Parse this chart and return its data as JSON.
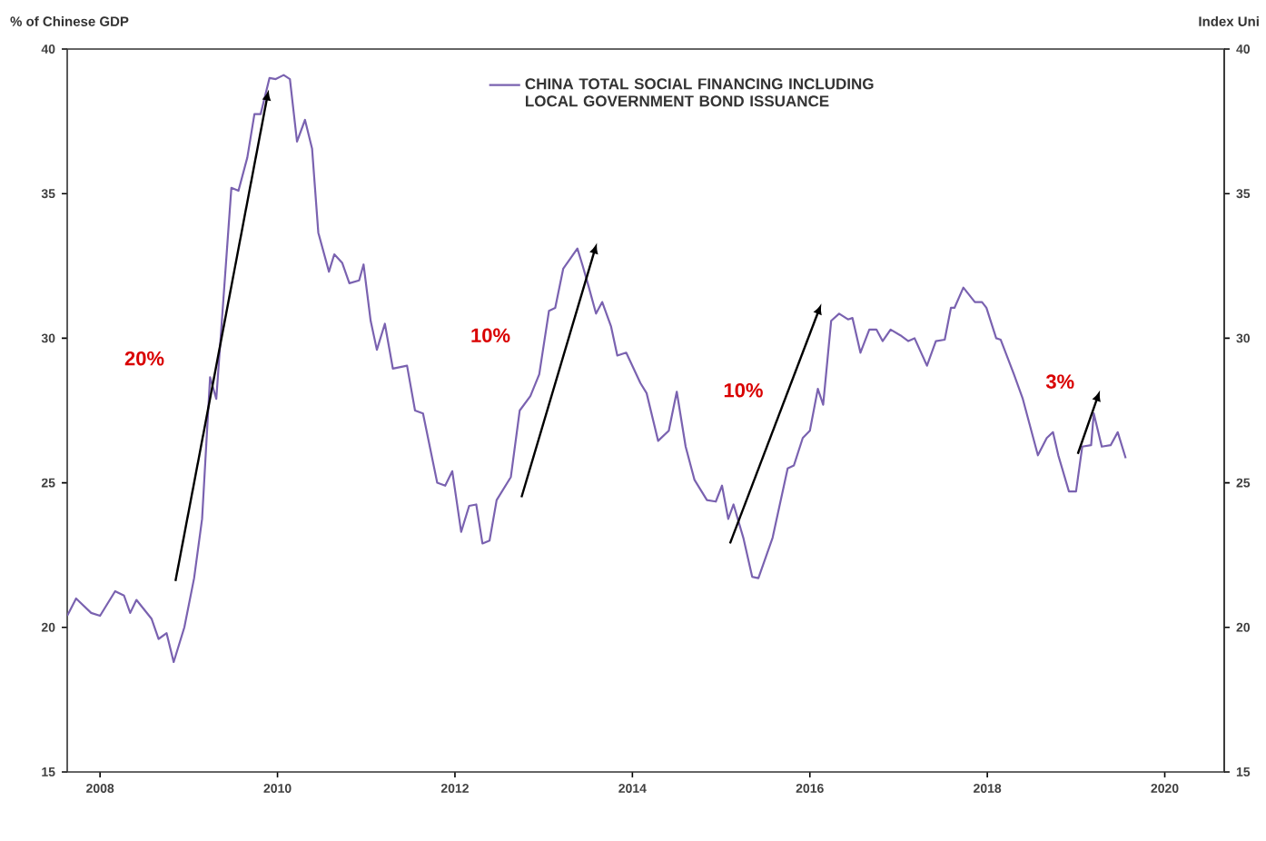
{
  "chart_data": {
    "type": "line",
    "ylabel": "% of Chinese GDP",
    "y2label": "Index Uni",
    "x": [
      2007.63,
      2007.73,
      2007.9,
      2008.0,
      2008.17,
      2008.27,
      2008.34,
      2008.41,
      2008.58,
      2008.66,
      2008.75,
      2008.83,
      2008.95,
      2009.06,
      2009.15,
      2009.24,
      2009.31,
      2009.48,
      2009.56,
      2009.66,
      2009.74,
      2009.81,
      2009.91,
      2009.98,
      2010.07,
      2010.14,
      2010.22,
      2010.31,
      2010.39,
      2010.46,
      2010.58,
      2010.64,
      2010.73,
      2010.81,
      2010.92,
      2010.97,
      2011.05,
      2011.12,
      2011.21,
      2011.3,
      2011.46,
      2011.55,
      2011.64,
      2011.8,
      2011.89,
      2011.97,
      2012.07,
      2012.16,
      2012.24,
      2012.31,
      2012.39,
      2012.47,
      2012.63,
      2012.73,
      2012.85,
      2012.95,
      2013.06,
      2013.13,
      2013.22,
      2013.38,
      2013.44,
      2013.51,
      2013.59,
      2013.66,
      2013.76,
      2013.83,
      2013.93,
      2014.09,
      2014.16,
      2014.29,
      2014.41,
      2014.5,
      2014.6,
      2014.7,
      2014.84,
      2014.94,
      2015.01,
      2015.08,
      2015.14,
      2015.25,
      2015.35,
      2015.42,
      2015.58,
      2015.75,
      2015.82,
      2015.92,
      2016.0,
      2016.09,
      2016.15,
      2016.24,
      2016.33,
      2016.43,
      2016.48,
      2016.57,
      2016.67,
      2016.75,
      2016.82,
      2016.91,
      2017.02,
      2017.11,
      2017.18,
      2017.32,
      2017.42,
      2017.52,
      2017.59,
      2017.63,
      2017.73,
      2017.86,
      2017.94,
      2017.99,
      2018.1,
      2018.15,
      2018.3,
      2018.4,
      2018.57,
      2018.67,
      2018.74,
      2018.8,
      2018.92,
      2019.0,
      2019.07,
      2019.17,
      2019.2,
      2019.29,
      2019.39,
      2019.47,
      2019.56
    ],
    "series": [
      {
        "name": "CHINA TOTAL SOCIAL FINANCING INCLUDING LOCAL GOVERNMENT BOND ISSUANCE",
        "color": "#7a62b0",
        "values": [
          20.4,
          21.0,
          20.5,
          20.4,
          21.25,
          21.1,
          20.5,
          20.95,
          20.3,
          19.6,
          19.8,
          18.8,
          20.0,
          21.7,
          23.75,
          28.65,
          27.9,
          35.2,
          35.1,
          36.25,
          37.75,
          37.75,
          39.0,
          38.96,
          39.1,
          38.96,
          36.8,
          37.55,
          36.55,
          33.65,
          32.3,
          32.9,
          32.6,
          31.9,
          32.0,
          32.55,
          30.6,
          29.6,
          30.5,
          28.95,
          29.05,
          27.5,
          27.4,
          25.0,
          24.9,
          25.4,
          23.3,
          24.2,
          24.25,
          22.9,
          23.0,
          24.4,
          25.2,
          27.5,
          28.0,
          28.75,
          30.95,
          31.05,
          32.4,
          33.1,
          32.5,
          31.75,
          30.85,
          31.25,
          30.4,
          29.4,
          29.5,
          28.45,
          28.1,
          26.45,
          26.8,
          28.15,
          26.25,
          25.1,
          24.4,
          24.35,
          24.9,
          23.75,
          24.25,
          23.1,
          21.75,
          21.7,
          23.1,
          25.5,
          25.6,
          26.55,
          26.8,
          28.25,
          27.7,
          30.6,
          30.85,
          30.65,
          30.7,
          29.5,
          30.3,
          30.3,
          29.9,
          30.3,
          30.1,
          29.9,
          30.0,
          29.05,
          29.9,
          29.95,
          31.05,
          31.05,
          31.75,
          31.25,
          31.25,
          31.05,
          30.0,
          29.95,
          28.75,
          27.9,
          25.95,
          26.55,
          26.75,
          25.95,
          24.7,
          24.7,
          26.25,
          26.3,
          27.4,
          26.25,
          26.3,
          26.75,
          25.85
        ]
      }
    ],
    "xlim": [
      2007.63,
      2020.67
    ],
    "xticks": [
      2008,
      2010,
      2012,
      2014,
      2016,
      2018,
      2020
    ],
    "ylim": [
      15,
      40
    ],
    "yticks": [
      15,
      20,
      25,
      30,
      35,
      40
    ],
    "y2lim": [
      15,
      40
    ],
    "y2ticks": [
      15,
      20,
      25,
      30,
      35,
      40
    ],
    "legend": "top",
    "grid": false,
    "marker": "none",
    "line_style": "solid",
    "annotations": [
      "20%",
      "10%",
      "10%",
      "3%"
    ]
  }
}
